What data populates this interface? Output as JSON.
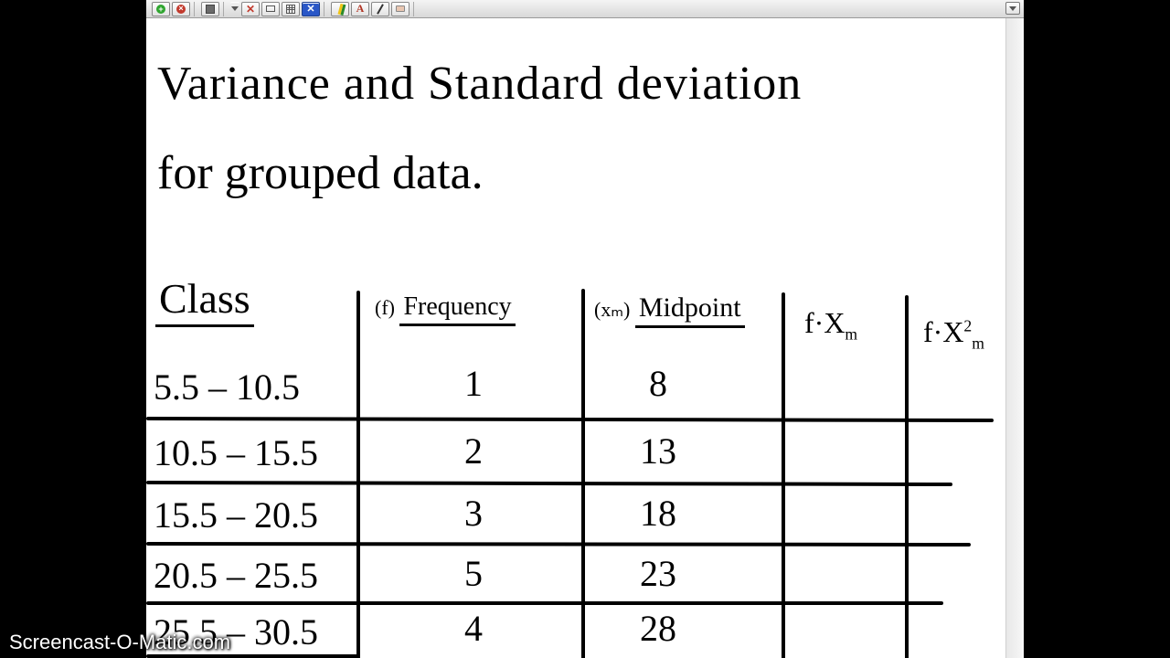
{
  "toolbar": {
    "add_color": "#2fa52f",
    "close_color": "#c23a2d",
    "x_color": "#c23a2d",
    "bluebox_color": "#2a57c7",
    "highlighter": "#f0c415",
    "red_a": "#b03423",
    "neutral": "#6b6b6b"
  },
  "content": {
    "title_line1": "Variance and Standard deviation",
    "title_line2": "for   grouped data.",
    "headers": {
      "class": "Class",
      "freq_pref": "(f)",
      "freq": "Frequency",
      "mid_pref": "(xₘ)",
      "mid": "Midpoint",
      "fx": "f·X",
      "fx_sub": "m",
      "fx2": "f·X",
      "fx2_sup": "2",
      "fx2_sub": "m"
    },
    "rows": [
      {
        "class": "5.5 – 10.5",
        "f": "1",
        "mid": "8"
      },
      {
        "class": "10.5 – 15.5",
        "f": "2",
        "mid": "13"
      },
      {
        "class": "15.5 – 20.5",
        "f": "3",
        "mid": "18"
      },
      {
        "class": "20.5 – 25.5",
        "f": "5",
        "mid": "23"
      },
      {
        "class": "25.5 – 30.5",
        "f": "4",
        "mid": "28"
      }
    ]
  },
  "watermark": "Screencast-O-Matic.com"
}
